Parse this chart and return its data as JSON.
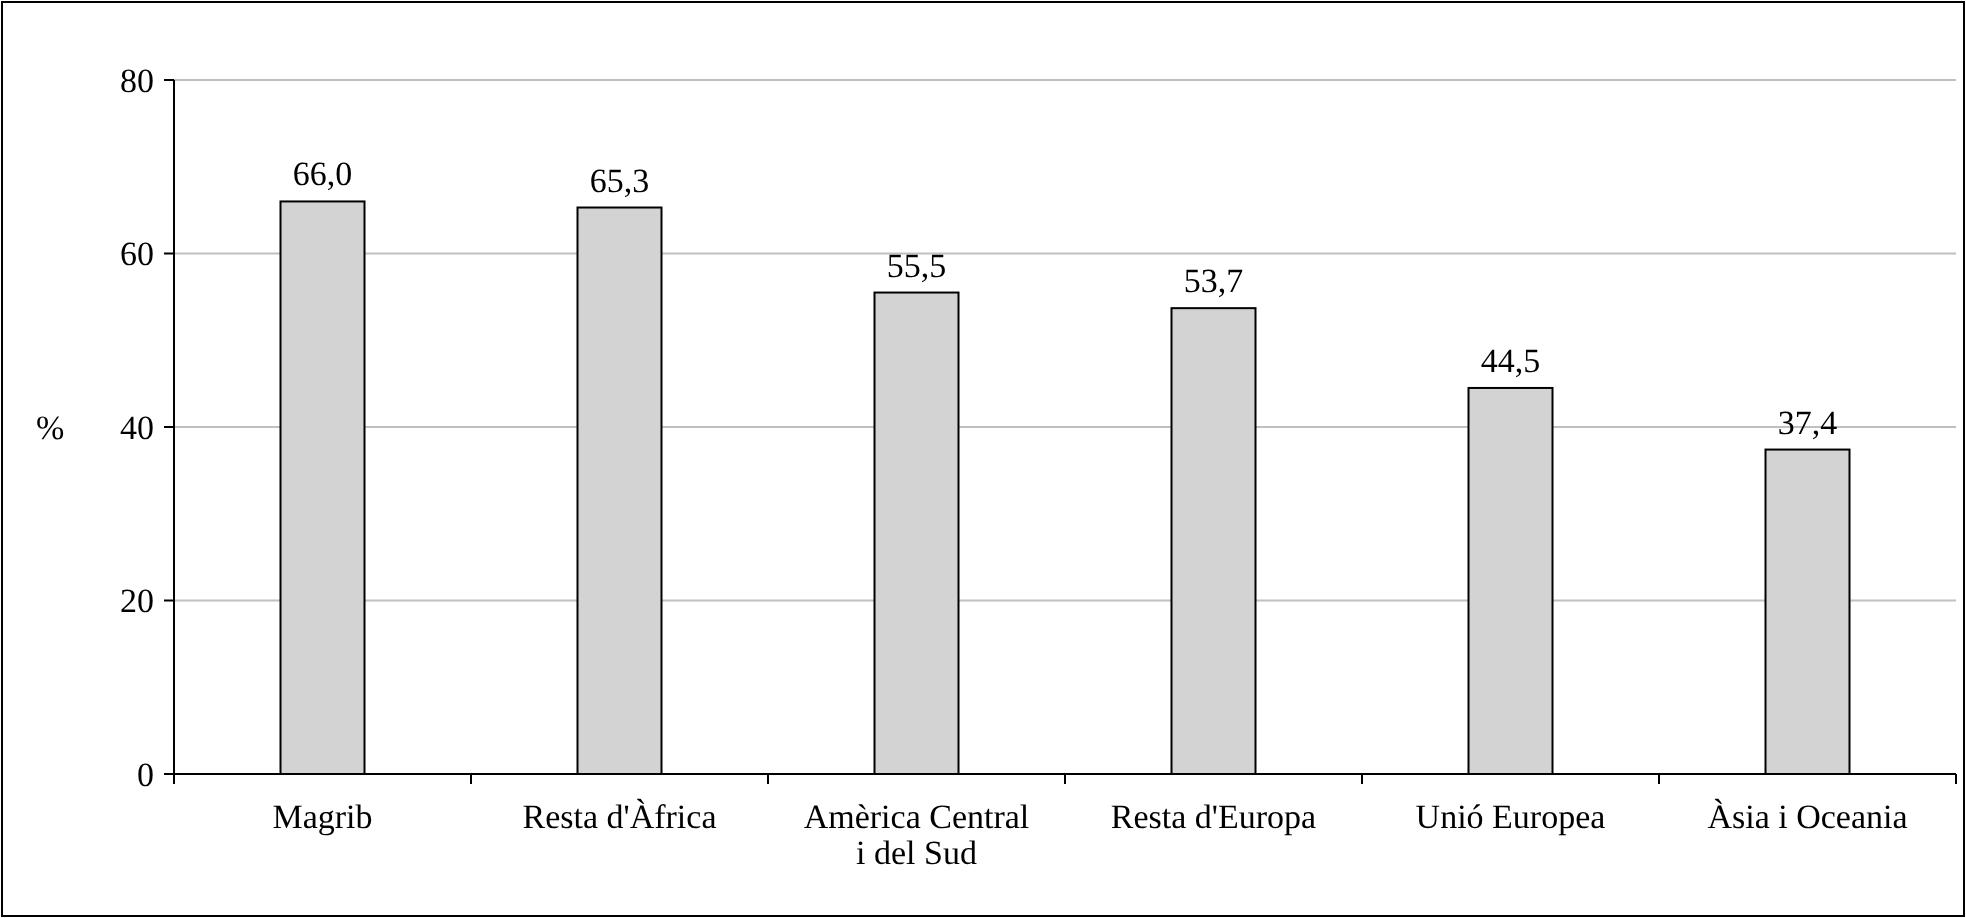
{
  "chart_data": {
    "type": "bar",
    "ylabel": "%",
    "categories": [
      "Magrib",
      "Resta d'Àfrica",
      "Amèrica Central i del Sud",
      "Resta d'Europa",
      "Unió Europea",
      "Àsia i Oceania"
    ],
    "values": [
      66.0,
      65.3,
      55.5,
      53.7,
      44.5,
      37.4
    ],
    "value_labels": [
      "66,0",
      "65,3",
      "55,5",
      "53,7",
      "44,5",
      "37,4"
    ],
    "color": "#d3d3d3",
    "ylim": [
      0,
      80
    ],
    "yticks": [
      0,
      20,
      40,
      60,
      80
    ],
    "grid": "y"
  }
}
